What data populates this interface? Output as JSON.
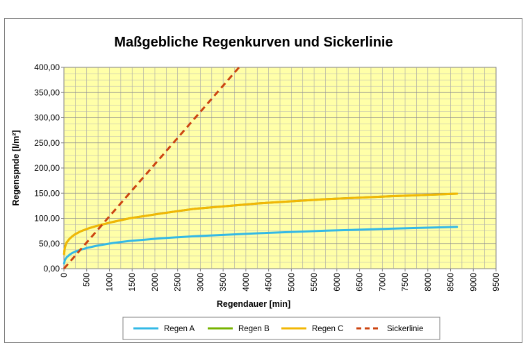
{
  "chart_data": {
    "type": "line",
    "title": "Maßgebliche Regenkurven und Sickerlinie",
    "xlabel": "Regendauer [min]",
    "ylabel": "Regenspnde [l/m²]",
    "xlim": [
      0,
      9500
    ],
    "ylim": [
      0,
      400
    ],
    "x_ticks": [
      0,
      500,
      1000,
      1500,
      2000,
      2500,
      3000,
      3500,
      4000,
      4500,
      5000,
      5500,
      6000,
      6500,
      7000,
      7500,
      8000,
      8500,
      9000,
      9500
    ],
    "x_tick_labels": [
      "0",
      "500",
      "1000",
      "1500",
      "2000",
      "2500",
      "3000",
      "3500",
      "4000",
      "4500",
      "5000",
      "5500",
      "6000",
      "6500",
      "7000",
      "7500",
      "8000",
      "8500",
      "9000",
      "9500"
    ],
    "y_ticks": [
      0,
      50,
      100,
      150,
      200,
      250,
      300,
      350,
      400
    ],
    "y_tick_labels": [
      "0,00",
      "50,00",
      "100,00",
      "150,00",
      "200,00",
      "250,00",
      "300,00",
      "350,00",
      "400,00"
    ],
    "grid": true,
    "plot_background": "#ffffa8",
    "legend_position": "bottom",
    "series": [
      {
        "name": "Regen A",
        "color": "#33b9e6",
        "style": "solid",
        "x": [
          5,
          10,
          15,
          30,
          60,
          120,
          180,
          240,
          360,
          540,
          720,
          1080,
          1440,
          2160,
          2880,
          4320,
          5760,
          7200,
          8640
        ],
        "y": [
          10.5,
          13,
          15,
          18.5,
          22.5,
          27.5,
          31,
          33.5,
          37.5,
          42,
          45.5,
          51,
          55,
          60.5,
          64.5,
          70.5,
          75.5,
          79.5,
          83
        ]
      },
      {
        "name": "Regen B",
        "color": "#77b300",
        "style": "solid",
        "x": [
          5,
          10,
          15,
          30,
          60,
          120,
          180,
          240,
          360,
          540,
          720,
          1080,
          1440,
          2160,
          2880,
          4320,
          5760,
          7200,
          8640
        ],
        "y": [
          29,
          35,
          39,
          45,
          52,
          59,
          64,
          68,
          74,
          80,
          85,
          93,
          100,
          110,
          119,
          130,
          138,
          144,
          149
        ]
      },
      {
        "name": "Regen C",
        "color": "#f2b705",
        "style": "solid",
        "x": [
          5,
          10,
          15,
          30,
          60,
          120,
          180,
          240,
          360,
          540,
          720,
          1080,
          1440,
          2160,
          2880,
          4320,
          5760,
          7200,
          8640
        ],
        "y": [
          29,
          35,
          39,
          45,
          52,
          59,
          64,
          68,
          74,
          80,
          85,
          93,
          100,
          110,
          119,
          130,
          138,
          144,
          149
        ]
      },
      {
        "name": "Sickerlinie",
        "color": "#cc4411",
        "style": "dashed",
        "x": [
          0,
          3850
        ],
        "y": [
          0,
          400
        ]
      }
    ]
  }
}
